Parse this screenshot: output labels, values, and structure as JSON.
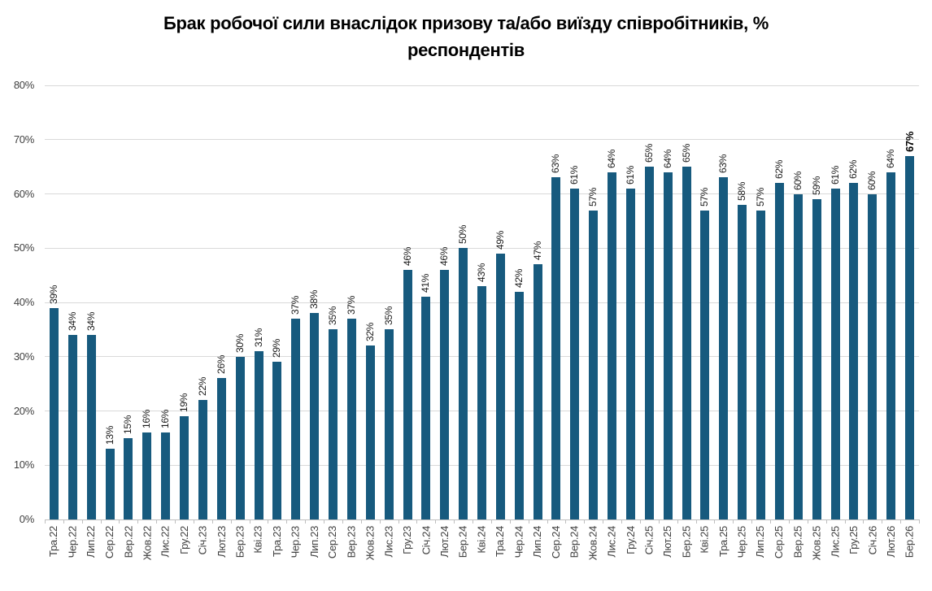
{
  "title": {
    "line1": "Брак робочої сили внаслідок призову та/або виїзду співробітників, %",
    "line2": "респондентів"
  },
  "chart_data": {
    "type": "bar",
    "title": "Брак робочої сили внаслідок призову та/або виїзду співробітників, % респондентів",
    "xlabel": "",
    "ylabel": "",
    "ylim": [
      0,
      80
    ],
    "ytick_labels": [
      "0%",
      "10%",
      "20%",
      "30%",
      "40%",
      "50%",
      "60%",
      "70%",
      "80%"
    ],
    "grid": true,
    "legend": "none",
    "bar_color": "#175a7e",
    "gridline_color": "#d9d9d9",
    "axis_line_color": "#bfbfbf",
    "value_label_suffix": "%",
    "bold_last_label": true,
    "categories": [
      "Тра.22",
      "Чер.22",
      "Лип.22",
      "Сер.22",
      "Вер.22",
      "Жов.22",
      "Лис.22",
      "Гру.22",
      "Січ.23",
      "Лют.23",
      "Бер.23",
      "Кві.23",
      "Тра.23",
      "Чер.23",
      "Лип.23",
      "Сер.23",
      "Вер.23",
      "Жов.23",
      "Лис.23",
      "Гру.23",
      "Січ.24",
      "Лют.24",
      "Бер.24",
      "Кві.24",
      "Тра.24",
      "Чер.24",
      "Лип.24",
      "Сер.24",
      "Вер.24",
      "Жов.24",
      "Лис.24",
      "Гру.24",
      "Січ.25",
      "Лют.25",
      "Бер.25",
      "Кві.25",
      "Тра.25",
      "Чер.25",
      "Лип.25",
      "Сер.25",
      "Вер.25",
      "Жов.25",
      "Лис.25",
      "Гру.25",
      "Січ.26",
      "Лют.26",
      "Бер.26"
    ],
    "values": [
      39,
      34,
      34,
      13,
      15,
      16,
      16,
      19,
      22,
      26,
      30,
      31,
      29,
      37,
      38,
      35,
      37,
      32,
      35,
      46,
      41,
      46,
      50,
      43,
      49,
      42,
      47,
      63,
      61,
      57,
      64,
      61,
      65,
      64,
      65,
      57,
      63,
      58,
      57,
      62,
      60,
      59,
      61,
      62,
      60,
      64,
      67
    ],
    "value_labels": [
      "39%",
      "34%",
      "34%",
      "13%",
      "15%",
      "16%",
      "16%",
      "19%",
      "22%",
      "26%",
      "30%",
      "31%",
      "29%",
      "37%",
      "38%",
      "35%",
      "37%",
      "32%",
      "35%",
      "46%",
      "41%",
      "46%",
      "50%",
      "43%",
      "49%",
      "42%",
      "47%",
      "63%",
      "61%",
      "57%",
      "64%",
      "61%",
      "65%",
      "64%",
      "65%",
      "57%",
      "63%",
      "58%",
      "57%",
      "62%",
      "60%",
      "59%",
      "61%",
      "62%",
      "60%",
      "64%",
      "67%"
    ]
  }
}
